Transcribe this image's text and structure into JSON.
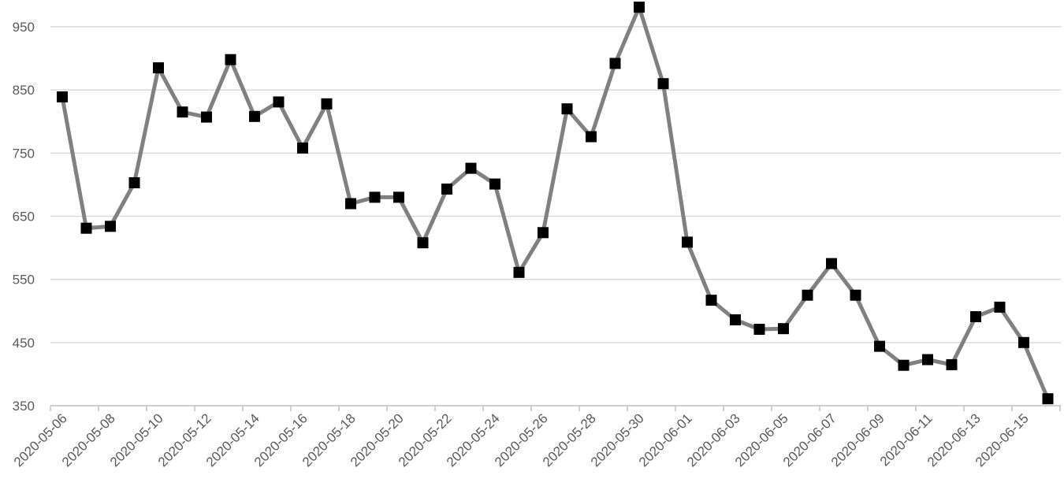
{
  "chart_data": {
    "type": "line",
    "title": "",
    "xlabel": "",
    "ylabel": "",
    "ylim": [
      350,
      950
    ],
    "yticks": [
      350,
      450,
      550,
      650,
      750,
      850,
      950
    ],
    "ytick_labels": [
      "350",
      "450",
      "550",
      "650",
      "750",
      "850",
      "950"
    ],
    "xtick_labels": [
      "2020-05-06",
      "2020-05-08",
      "2020-05-10",
      "2020-05-12",
      "2020-05-14",
      "2020-05-16",
      "2020-05-18",
      "2020-05-20",
      "2020-05-22",
      "2020-05-24",
      "2020-05-26",
      "2020-05-28",
      "2020-05-30",
      "2020-06-01",
      "2020-06-03",
      "2020-06-05",
      "2020-06-07",
      "2020-06-09",
      "2020-06-11",
      "2020-06-13",
      "2020-06-15"
    ],
    "grid": true,
    "legend": "none",
    "line_color": "#808080",
    "marker_color": "#000000",
    "grid_color": "#d9d9d9",
    "axis_color": "#bfbfbf",
    "series": [
      {
        "x": [
          "2020-05-06",
          "2020-05-07",
          "2020-05-08",
          "2020-05-09",
          "2020-05-10",
          "2020-05-11",
          "2020-05-12",
          "2020-05-13",
          "2020-05-14",
          "2020-05-15",
          "2020-05-16",
          "2020-05-17",
          "2020-05-18",
          "2020-05-19",
          "2020-05-20",
          "2020-05-21",
          "2020-05-22",
          "2020-05-23",
          "2020-05-24",
          "2020-05-25",
          "2020-05-26",
          "2020-05-27",
          "2020-05-28",
          "2020-05-29",
          "2020-05-30",
          "2020-05-31",
          "2020-06-01",
          "2020-06-02",
          "2020-06-03",
          "2020-06-04",
          "2020-06-05",
          "2020-06-06",
          "2020-06-07",
          "2020-06-08",
          "2020-06-09",
          "2020-06-10",
          "2020-06-11",
          "2020-06-12",
          "2020-06-13",
          "2020-06-14",
          "2020-06-15",
          "2020-06-16"
        ],
        "values": [
          839,
          631,
          634,
          703,
          885,
          815,
          807,
          898,
          808,
          831,
          758,
          828,
          670,
          680,
          680,
          608,
          693,
          726,
          701,
          561,
          624,
          820,
          776,
          892,
          981,
          860,
          609,
          517,
          486,
          471,
          472,
          525,
          575,
          525,
          444,
          414,
          423,
          415,
          491,
          506,
          450,
          361
        ]
      }
    ]
  }
}
